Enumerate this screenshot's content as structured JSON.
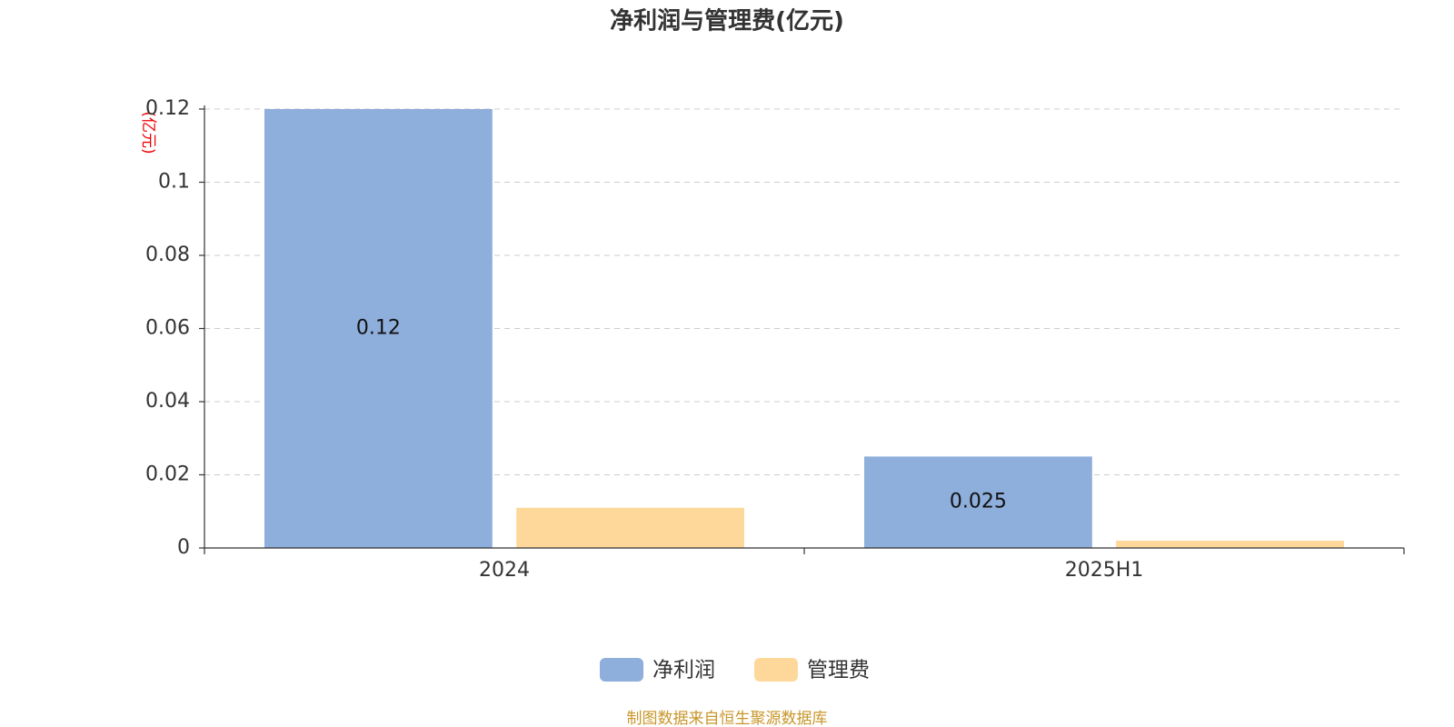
{
  "chart_data": {
    "type": "bar",
    "title": "净利润与管理费(亿元)",
    "y_label": "(亿元)",
    "categories": [
      "2024",
      "2025H1"
    ],
    "series": [
      {
        "name": "净利润",
        "color": "#8eaedb",
        "values": [
          0.12,
          0.025
        ],
        "labels": true
      },
      {
        "name": "管理费",
        "color": "#fed89a",
        "values": [
          0.011,
          0.002
        ],
        "labels": false
      }
    ],
    "ylim": [
      0,
      0.12
    ],
    "yticks": [
      0,
      0.02,
      0.04,
      0.06,
      0.08,
      0.1,
      0.12
    ],
    "grid": true,
    "legend": "bottom",
    "source": "制图数据来自恒生聚源数据库"
  }
}
